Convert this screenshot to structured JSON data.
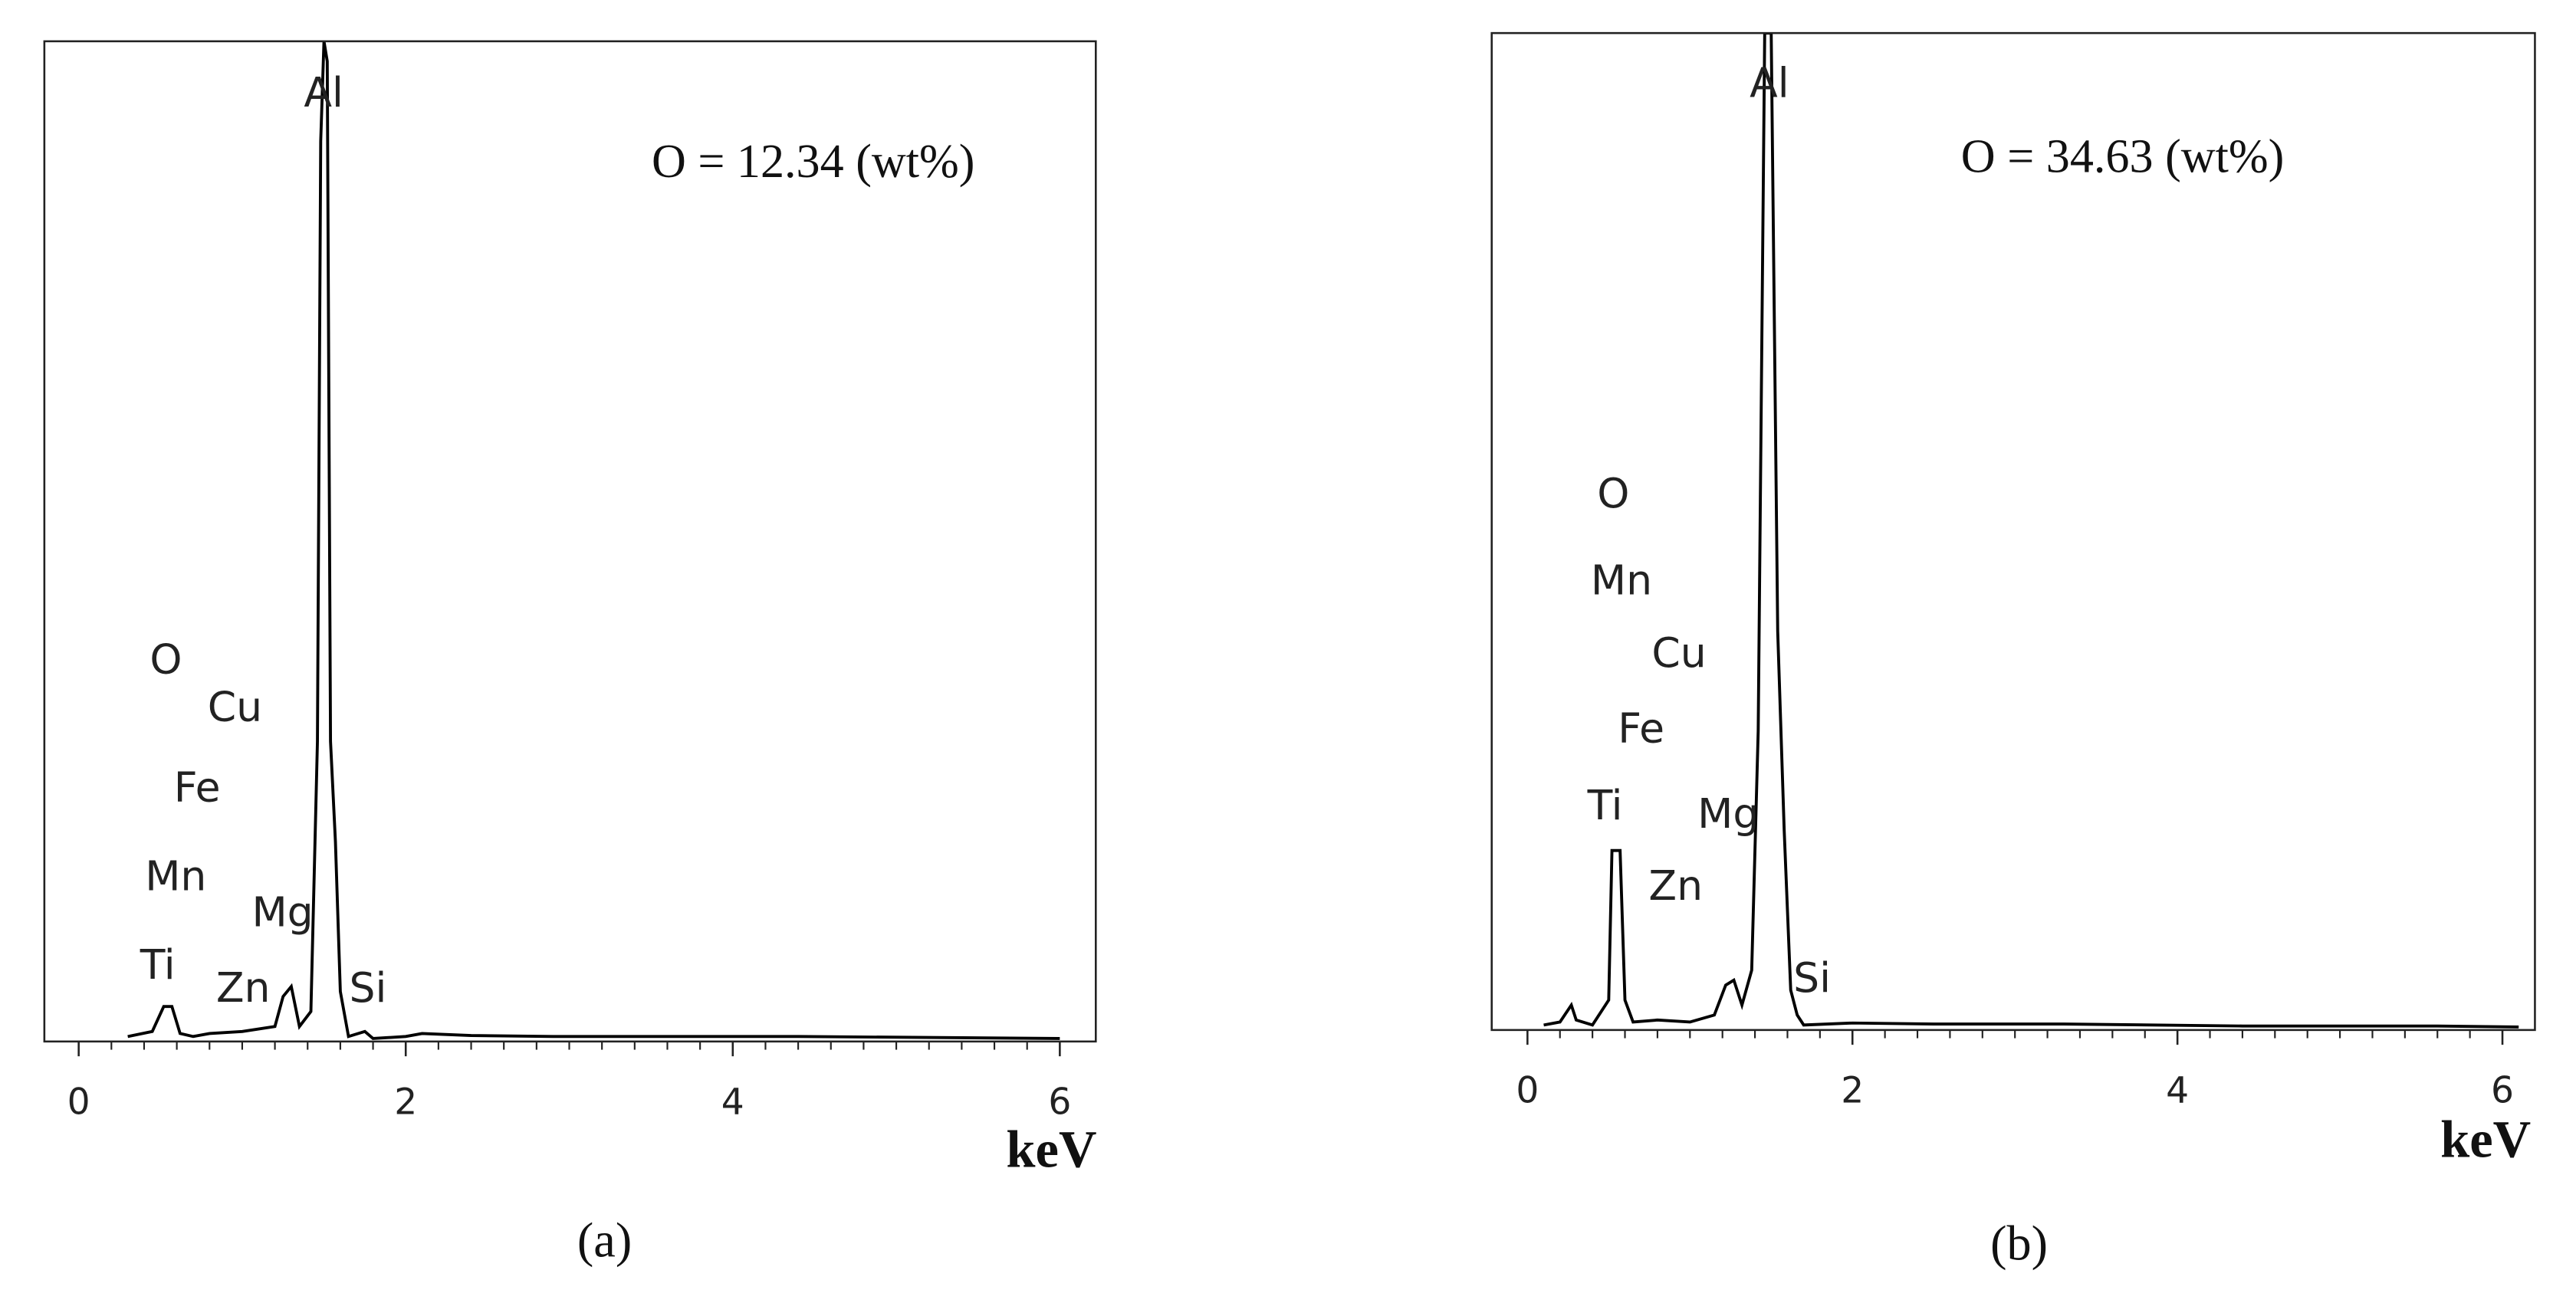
{
  "chart_data": [
    {
      "type": "line",
      "caption": "(a)",
      "note": "O = 12.34 (wt%)",
      "x_label": "keV",
      "color": "#000000",
      "annotations": [
        "Al",
        "O",
        "Cu",
        "Fe",
        "Mn",
        "Mg",
        "Ti",
        "Zn",
        "Si"
      ],
      "x": [
        0.3,
        0.45,
        0.52,
        0.57,
        0.62,
        0.7,
        0.8,
        1.0,
        1.2,
        1.25,
        1.3,
        1.35,
        1.42,
        1.46,
        1.48,
        1.5,
        1.52,
        1.54,
        1.57,
        1.6,
        1.65,
        1.75,
        1.8,
        2.0,
        2.1,
        2.4,
        2.9,
        3.6,
        4.4,
        6.0
      ],
      "values": [
        0.5,
        1,
        3.5,
        3.5,
        0.8,
        0.5,
        0.8,
        1,
        1.5,
        4.5,
        5.5,
        1.5,
        3,
        30,
        90,
        100,
        98,
        30,
        20,
        5,
        0.5,
        1,
        0.3,
        0.5,
        0.8,
        0.6,
        0.5,
        0.5,
        0.5,
        0.3
      ],
      "xlim": [
        -0.21,
        6.22
      ],
      "xticks": [
        0,
        2,
        4,
        6
      ],
      "ylim": [
        0,
        100
      ]
    },
    {
      "type": "line",
      "caption": "(b)",
      "note": "O = 34.63 (wt%)",
      "x_label": "keV",
      "color": "#000000",
      "annotations": [
        "Al",
        "O",
        "Mn",
        "Cu",
        "Fe",
        "Ti",
        "Mg",
        "Zn",
        "Si"
      ],
      "x": [
        0.1,
        0.2,
        0.27,
        0.3,
        0.4,
        0.5,
        0.52,
        0.57,
        0.6,
        0.65,
        0.8,
        1.0,
        1.15,
        1.22,
        1.27,
        1.32,
        1.38,
        1.42,
        1.46,
        1.5,
        1.54,
        1.58,
        1.62,
        1.66,
        1.7,
        2.0,
        2.5,
        3.3,
        4.4,
        5.6,
        6.1
      ],
      "values": [
        0.5,
        0.8,
        2.5,
        1,
        0.5,
        3,
        18,
        18,
        3,
        0.8,
        1,
        0.8,
        1.5,
        4.5,
        5,
        2.5,
        6,
        30,
        100,
        100,
        40,
        20,
        4,
        1.5,
        0.5,
        0.7,
        0.6,
        0.6,
        0.4,
        0.4,
        0.3
      ],
      "xlim": [
        -0.22,
        6.2
      ],
      "xticks": [
        0,
        2,
        4,
        6
      ],
      "ylim": [
        0,
        100
      ]
    }
  ]
}
